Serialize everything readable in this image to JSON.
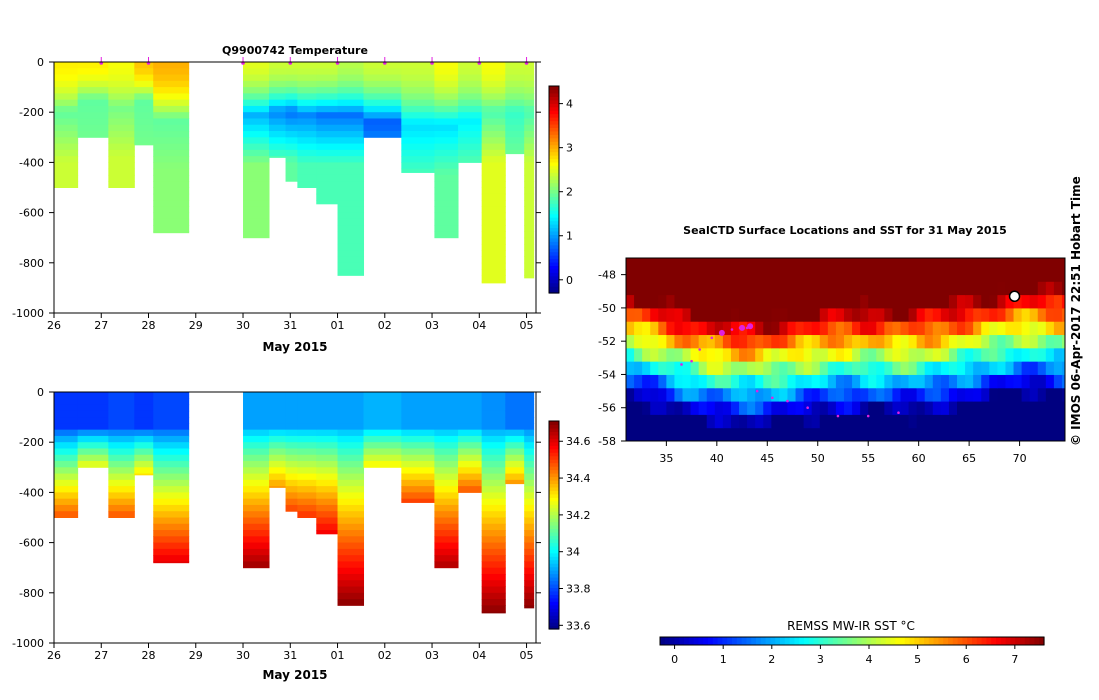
{
  "chart_data": [
    {
      "type": "heatmap",
      "title": "Q9900742  Temperature",
      "xlabel": "May 2015",
      "ylabel": "",
      "x_tick_labels": [
        "26",
        "27",
        "28",
        "29",
        "30",
        "31",
        "01",
        "02",
        "03",
        "04",
        "05"
      ],
      "y_ticks": [
        0,
        -200,
        -400,
        -600,
        -800,
        -1000
      ],
      "ylim": [
        -1000,
        0
      ],
      "x_range_days": [
        0,
        10.2
      ],
      "colorbar": {
        "ticks": [
          0,
          1,
          2,
          3,
          4
        ],
        "range": [
          -0.3,
          4.4
        ]
      },
      "profile_markers_days": [
        1.0,
        2.0,
        4.0,
        5.0,
        6.0,
        7.0,
        8.0,
        9.0,
        10.0
      ],
      "profiles": [
        {
          "x0": 0.0,
          "x1": 0.5,
          "max_depth": 500,
          "surface": 2.7,
          "minimum": 1.9,
          "min_depth": 200,
          "deep": 2.4
        },
        {
          "x0": 0.5,
          "x1": 1.15,
          "max_depth": 300,
          "surface": 2.7,
          "minimum": 1.9,
          "min_depth": 150,
          "deep": 2.0
        },
        {
          "x0": 1.15,
          "x1": 1.7,
          "max_depth": 500,
          "surface": 2.6,
          "minimum": 2.0,
          "min_depth": 180,
          "deep": 2.4
        },
        {
          "x0": 1.7,
          "x1": 2.1,
          "max_depth": 330,
          "surface": 2.9,
          "minimum": 1.9,
          "min_depth": 150,
          "deep": 2.0
        },
        {
          "x0": 2.1,
          "x1": 2.85,
          "max_depth": 680,
          "surface": 3.0,
          "minimum": 1.9,
          "min_depth": 230,
          "deep": 2.1
        },
        {
          "x0": 4.0,
          "x1": 4.55,
          "max_depth": 700,
          "surface": 2.5,
          "minimum": 1.1,
          "min_depth": 210,
          "deep": 2.1
        },
        {
          "x0": 4.55,
          "x1": 4.9,
          "max_depth": 380,
          "surface": 2.4,
          "minimum": 0.9,
          "min_depth": 200,
          "deep": 1.9
        },
        {
          "x0": 4.9,
          "x1": 5.15,
          "max_depth": 475,
          "surface": 2.4,
          "minimum": 0.8,
          "min_depth": 200,
          "deep": 1.9
        },
        {
          "x0": 5.15,
          "x1": 5.55,
          "max_depth": 500,
          "surface": 2.4,
          "minimum": 0.9,
          "min_depth": 210,
          "deep": 1.8
        },
        {
          "x0": 5.55,
          "x1": 6.0,
          "max_depth": 565,
          "surface": 2.4,
          "minimum": 0.8,
          "min_depth": 210,
          "deep": 1.8
        },
        {
          "x0": 6.0,
          "x1": 6.55,
          "max_depth": 850,
          "surface": 2.3,
          "minimum": 0.8,
          "min_depth": 210,
          "deep": 1.8
        },
        {
          "x0": 6.55,
          "x1": 7.35,
          "max_depth": 300,
          "surface": 2.4,
          "minimum": 0.7,
          "min_depth": 240,
          "deep": 1.3
        },
        {
          "x0": 7.35,
          "x1": 8.05,
          "max_depth": 440,
          "surface": 2.4,
          "minimum": 1.3,
          "min_depth": 250,
          "deep": 1.8
        },
        {
          "x0": 8.05,
          "x1": 8.55,
          "max_depth": 700,
          "surface": 2.6,
          "minimum": 1.3,
          "min_depth": 250,
          "deep": 1.9
        },
        {
          "x0": 8.55,
          "x1": 9.05,
          "max_depth": 400,
          "surface": 2.4,
          "minimum": 1.4,
          "min_depth": 230,
          "deep": 1.9
        },
        {
          "x0": 9.05,
          "x1": 9.55,
          "max_depth": 880,
          "surface": 2.6,
          "minimum": 1.8,
          "min_depth": 200,
          "deep": 2.5
        },
        {
          "x0": 9.55,
          "x1": 9.95,
          "max_depth": 365,
          "surface": 2.4,
          "minimum": 1.7,
          "min_depth": 200,
          "deep": 2.0
        },
        {
          "x0": 9.95,
          "x1": 10.15,
          "max_depth": 860,
          "surface": 2.4,
          "minimum": 1.8,
          "min_depth": 200,
          "deep": 2.4
        }
      ]
    },
    {
      "type": "heatmap",
      "title": "",
      "xlabel": "May 2015",
      "ylabel": "",
      "x_tick_labels": [
        "26",
        "27",
        "28",
        "29",
        "30",
        "31",
        "01",
        "02",
        "03",
        "04",
        "05"
      ],
      "y_ticks": [
        0,
        -200,
        -400,
        -600,
        -800,
        -1000
      ],
      "ylim": [
        -1000,
        0
      ],
      "x_range_days": [
        0,
        10.2
      ],
      "colorbar": {
        "ticks": [
          33.6,
          33.8,
          34,
          34.2,
          34.4,
          34.6
        ],
        "range": [
          33.58,
          34.71
        ]
      },
      "profiles": [
        {
          "x0": 0.0,
          "x1": 0.5,
          "max_depth": 500,
          "surface": 33.78,
          "bottom": 34.48
        },
        {
          "x0": 0.5,
          "x1": 1.15,
          "max_depth": 300,
          "surface": 33.78,
          "bottom": 34.28
        },
        {
          "x0": 1.15,
          "x1": 1.7,
          "max_depth": 500,
          "surface": 33.8,
          "bottom": 34.48
        },
        {
          "x0": 1.7,
          "x1": 2.1,
          "max_depth": 330,
          "surface": 33.78,
          "bottom": 34.32
        },
        {
          "x0": 2.1,
          "x1": 2.85,
          "max_depth": 680,
          "surface": 33.8,
          "bottom": 34.6
        },
        {
          "x0": 4.0,
          "x1": 4.55,
          "max_depth": 700,
          "surface": 33.9,
          "bottom": 34.68
        },
        {
          "x0": 4.55,
          "x1": 4.9,
          "max_depth": 380,
          "surface": 33.9,
          "bottom": 34.4
        },
        {
          "x0": 4.9,
          "x1": 5.15,
          "max_depth": 475,
          "surface": 33.9,
          "bottom": 34.5
        },
        {
          "x0": 5.15,
          "x1": 5.55,
          "max_depth": 500,
          "surface": 33.9,
          "bottom": 34.52
        },
        {
          "x0": 5.55,
          "x1": 6.0,
          "max_depth": 565,
          "surface": 33.9,
          "bottom": 34.58
        },
        {
          "x0": 6.0,
          "x1": 6.55,
          "max_depth": 850,
          "surface": 33.9,
          "bottom": 34.7
        },
        {
          "x0": 6.55,
          "x1": 7.35,
          "max_depth": 300,
          "surface": 33.92,
          "bottom": 34.3
        },
        {
          "x0": 7.35,
          "x1": 8.05,
          "max_depth": 440,
          "surface": 33.9,
          "bottom": 34.5
        },
        {
          "x0": 8.05,
          "x1": 8.55,
          "max_depth": 700,
          "surface": 33.9,
          "bottom": 34.66
        },
        {
          "x0": 8.55,
          "x1": 9.05,
          "max_depth": 400,
          "surface": 33.9,
          "bottom": 34.48
        },
        {
          "x0": 9.05,
          "x1": 9.55,
          "max_depth": 880,
          "surface": 33.88,
          "bottom": 34.7
        },
        {
          "x0": 9.55,
          "x1": 9.95,
          "max_depth": 365,
          "surface": 33.85,
          "bottom": 34.4
        },
        {
          "x0": 9.95,
          "x1": 10.15,
          "max_depth": 860,
          "surface": 33.85,
          "bottom": 34.7
        }
      ]
    },
    {
      "type": "heatmap",
      "title": "SealCTD Surface Locations and SST for 31 May 2015",
      "xlabel": "",
      "ylabel": "",
      "xlim": [
        31,
        74.5
      ],
      "ylim": [
        -58,
        -47
      ],
      "x_ticks": [
        35,
        40,
        45,
        50,
        55,
        60,
        65,
        70
      ],
      "y_ticks": [
        -48,
        -50,
        -52,
        -54,
        -56,
        -58
      ],
      "colorbar": {
        "label": "REMSS MW-IR SST °C",
        "ticks": [
          0,
          1,
          2,
          3,
          4,
          5,
          6,
          7
        ],
        "range": [
          -0.3,
          7.6
        ]
      },
      "track_points": [
        [
          36.5,
          -53.4
        ],
        [
          37.5,
          -53.2
        ],
        [
          38.3,
          -52.5
        ],
        [
          39.5,
          -51.8
        ],
        [
          40.5,
          -51.6
        ],
        [
          41.5,
          -51.3
        ],
        [
          42.3,
          -51.2
        ],
        [
          43.0,
          -51.2
        ],
        [
          44.0,
          -55.0
        ],
        [
          45.5,
          -55.4
        ],
        [
          47.0,
          -55.6
        ],
        [
          49.0,
          -56.0
        ],
        [
          52.0,
          -56.5
        ],
        [
          55.0,
          -56.5
        ],
        [
          58.0,
          -56.3
        ]
      ],
      "highlight_points": [
        [
          40.5,
          -51.5
        ],
        [
          42.5,
          -51.2
        ],
        [
          43.3,
          -51.1
        ]
      ],
      "seal_location": [
        69.5,
        -49.3
      ]
    }
  ],
  "credit": "© IMOS 06-Apr-2017 22:51 Hobart Time"
}
